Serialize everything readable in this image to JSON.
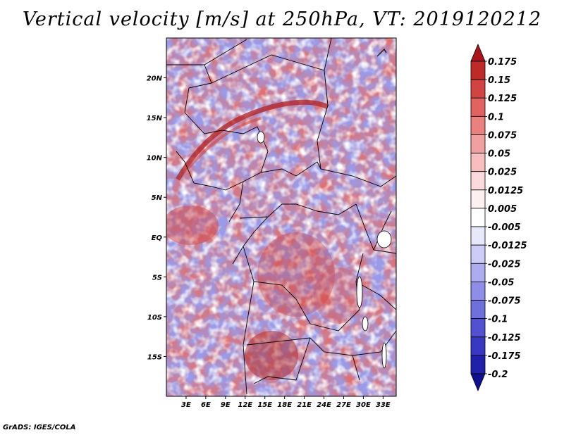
{
  "title": "Vertical velocity [m/s] at 250hPa, VT: 2019120212",
  "credit": "GrADS: IGES/COLA",
  "map": {
    "lon_range": [
      0,
      35
    ],
    "lat_range": [
      -20,
      25
    ],
    "lat_labels": [
      "20N",
      "15N",
      "10N",
      "5N",
      "EQ",
      "5S",
      "10S",
      "15S"
    ],
    "lon_labels": [
      "3E",
      "6E",
      "9E",
      "12E",
      "15E",
      "18E",
      "21E",
      "24E",
      "27E",
      "30E",
      "33E"
    ]
  },
  "colorbar": {
    "labels": [
      "0.175",
      "0.15",
      "0.125",
      "0.1",
      "0.075",
      "0.05",
      "0.025",
      "0.0125",
      "0.005",
      "-0.005",
      "-0.0125",
      "-0.025",
      "-0.05",
      "-0.075",
      "-0.1",
      "-0.125",
      "-0.175",
      "-0.2"
    ],
    "colors": [
      "#a8151c",
      "#be2a2a",
      "#d24444",
      "#e06262",
      "#e98181",
      "#f0a0a0",
      "#f6bebe",
      "#fadada",
      "#fdf0f0",
      "#ffffff",
      "#e8e8fb",
      "#ccccf6",
      "#acacee",
      "#8e8ee6",
      "#7070dc",
      "#5252d0",
      "#3838c2",
      "#2020aa",
      "#10108f"
    ]
  }
}
